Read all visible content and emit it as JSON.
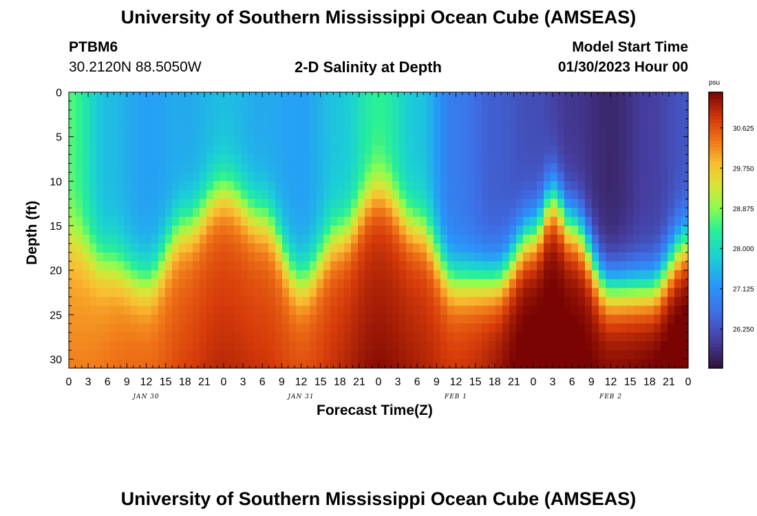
{
  "header": {
    "title": "University of Southern Mississippi Ocean Cube (AMSEAS)",
    "station_id": "PTBM6",
    "station_coords": "30.2120N  88.5050W",
    "chart_title": "2-D Salinity at Depth",
    "model_start_label": "Model Start Time",
    "model_start_value": "01/30/2023 Hour 00"
  },
  "footer": {
    "title": "University of Southern Mississippi Ocean Cube (AMSEAS)"
  },
  "chart_data": {
    "type": "heatmap",
    "title": "2-D Salinity at Depth",
    "xlabel": "Forecast Time(Z)",
    "ylabel": "Depth (ft)",
    "x_range_hours": [
      0,
      96
    ],
    "y_range_ft": [
      0,
      31
    ],
    "x_tick_hours": [
      0,
      3,
      6,
      9,
      12,
      15,
      18,
      21,
      24,
      27,
      30,
      33,
      36,
      39,
      42,
      45,
      48,
      51,
      54,
      57,
      60,
      63,
      66,
      69,
      72,
      75,
      78,
      81,
      84,
      87,
      90,
      93,
      96
    ],
    "x_tick_labels": [
      "0",
      "3",
      "6",
      "9",
      "12",
      "15",
      "18",
      "21",
      "0",
      "3",
      "6",
      "9",
      "12",
      "15",
      "18",
      "21",
      "0",
      "3",
      "6",
      "9",
      "12",
      "15",
      "18",
      "21",
      "0",
      "3",
      "6",
      "9",
      "12",
      "15",
      "18",
      "21",
      "0"
    ],
    "date_labels": [
      {
        "hour": 12,
        "label": "JAN 30"
      },
      {
        "hour": 36,
        "label": "JAN 31"
      },
      {
        "hour": 60,
        "label": "FEB 1"
      },
      {
        "hour": 84,
        "label": "FEB 2"
      }
    ],
    "y_ticks": [
      0,
      5,
      10,
      15,
      20,
      25,
      30
    ],
    "y_tick_labels": [
      "0",
      "5",
      "10",
      "15",
      "20",
      "25",
      "30"
    ],
    "colorbar": {
      "unit": "psu",
      "min": 25.4,
      "max": 31.4,
      "ticks": [
        30.625,
        29.75,
        28.875,
        28.0,
        27.125,
        26.25
      ],
      "tick_labels": [
        "30.625",
        "29.750",
        "28.875",
        "28.000",
        "27.125",
        "26.250"
      ]
    },
    "halocline_depth_ft": {
      "hours": [
        0,
        6,
        12,
        18,
        24,
        30,
        36,
        42,
        48,
        54,
        60,
        66,
        72,
        75,
        78,
        84,
        90,
        96
      ],
      "depth": [
        16,
        19,
        21,
        15,
        11,
        14,
        21,
        16,
        11,
        15,
        21,
        21,
        16,
        12,
        15,
        22,
        22,
        17
      ]
    },
    "surface_salinity_psu": {
      "hours": [
        0,
        6,
        12,
        18,
        24,
        30,
        36,
        42,
        48,
        54,
        60,
        66,
        72,
        78,
        84,
        90,
        96
      ],
      "values": [
        28.6,
        27.6,
        27.3,
        27.4,
        27.6,
        27.4,
        27.3,
        27.7,
        28.4,
        27.7,
        26.8,
        26.4,
        26.2,
        25.9,
        25.7,
        26.0,
        26.3
      ]
    },
    "bottom_salinity_psu": {
      "hours": [
        0,
        12,
        24,
        36,
        48,
        60,
        72,
        84,
        96
      ],
      "values": [
        29.9,
        30.2,
        30.5,
        30.4,
        30.8,
        30.6,
        31.2,
        31.1,
        31.3
      ]
    }
  }
}
